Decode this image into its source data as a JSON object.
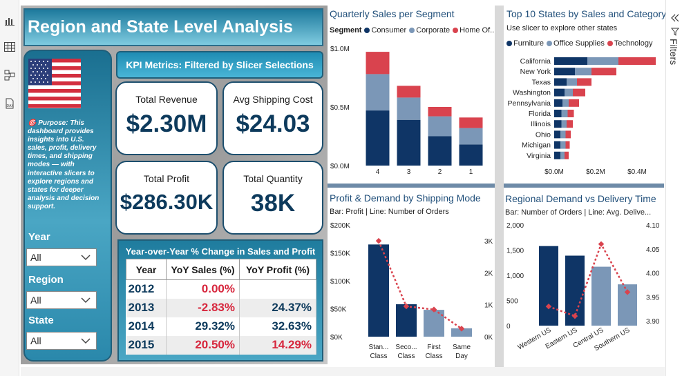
{
  "rail": {
    "icons": [
      "report-view-icon",
      "table-view-icon",
      "model-view-icon",
      "dax-query-icon"
    ]
  },
  "title": "Region and State Level Analysis",
  "purpose": "🎯 Purpose: This dashboard provides insights into U.S. sales, profit, delivery times, and shipping modes — with interactive slicers to explore regions and states for deeper analysis and decision support.",
  "slicers": [
    {
      "label": "Year",
      "value": "All"
    },
    {
      "label": "Region",
      "value": "All"
    },
    {
      "label": "State",
      "value": "All"
    }
  ],
  "kpi": {
    "header": "KPI Metrics: Filtered by Slicer Selections",
    "cards": [
      {
        "title": "Total Revenue",
        "value": "$2.30M"
      },
      {
        "title": "Avg Shipping Cost",
        "value": "$24.03"
      },
      {
        "title": "Total Profit",
        "value": "$286.30K"
      },
      {
        "title": "Total Quantity",
        "value": "38K"
      }
    ]
  },
  "yoy": {
    "title": "Year-over-Year % Change in Sales and Profit",
    "headers": [
      "Year",
      "YoY Sales (%)",
      "YoY Profit (%)"
    ],
    "rows": [
      {
        "year": "2012",
        "sales": "0.00%",
        "profit": "",
        "sales_color": "#d7263d",
        "profit_color": "#0d3a5c"
      },
      {
        "year": "2013",
        "sales": "-2.83%",
        "profit": "24.37%",
        "sales_color": "#d7263d",
        "profit_color": "#0d3a5c"
      },
      {
        "year": "2014",
        "sales": "29.32%",
        "profit": "32.63%",
        "sales_color": "#0d3a5c",
        "profit_color": "#0d3a5c"
      },
      {
        "year": "2015",
        "sales": "20.50%",
        "profit": "14.29%",
        "sales_color": "#d7263d",
        "profit_color": "#d7263d"
      }
    ]
  },
  "colors": {
    "navy": "#0f3566",
    "steel": "#7b97b7",
    "red": "#d9434e",
    "dotline": "#d9434e"
  },
  "chart_data": [
    {
      "type": "bar",
      "stacked": true,
      "title": "Quarterly Sales per Segment",
      "legend_title": "Segment",
      "categories": [
        "4",
        "3",
        "2",
        "1"
      ],
      "series": [
        {
          "name": "Consumer",
          "values": [
            0.47,
            0.39,
            0.25,
            0.18
          ]
        },
        {
          "name": "Corporate",
          "values": [
            0.31,
            0.19,
            0.17,
            0.14
          ]
        },
        {
          "name": "Home Of...",
          "values": [
            0.19,
            0.1,
            0.08,
            0.09
          ]
        }
      ],
      "yticks": [
        "$0.0M",
        "$0.5M",
        "$1.0M"
      ],
      "ylim": [
        0,
        1.0
      ]
    },
    {
      "type": "bar",
      "stacked": true,
      "orientation": "horizontal",
      "title": "Top 10 States by Sales and Category",
      "subtitle": "Use slicer to explore other states",
      "categories": [
        "California",
        "New York",
        "Texas",
        "Washington",
        "Pennsylvania",
        "Florida",
        "Illinois",
        "Ohio",
        "Michigan",
        "Virginia"
      ],
      "series": [
        {
          "name": "Furniture",
          "values": [
            0.16,
            0.1,
            0.06,
            0.05,
            0.04,
            0.035,
            0.035,
            0.03,
            0.03,
            0.03
          ]
        },
        {
          "name": "Office Supplies",
          "values": [
            0.15,
            0.08,
            0.05,
            0.04,
            0.03,
            0.03,
            0.025,
            0.025,
            0.025,
            0.02
          ]
        },
        {
          "name": "Technology",
          "values": [
            0.18,
            0.12,
            0.07,
            0.06,
            0.05,
            0.03,
            0.03,
            0.025,
            0.02,
            0.02
          ]
        }
      ],
      "xticks": [
        "$0.0M",
        "$0.2M",
        "$0.4M"
      ],
      "xlim": [
        0,
        0.5
      ]
    },
    {
      "type": "bar",
      "combo_line": true,
      "title": "Profit & Demand by Shipping Mode",
      "subtitle": "Bar: Profit | Line: Number of Orders",
      "categories": [
        "Stan... Class",
        "Seco... Class",
        "First Class",
        "Same Day"
      ],
      "bar_values_k": [
        165,
        58,
        48,
        15
      ],
      "line_values_k": [
        3.0,
        0.95,
        0.85,
        0.25
      ],
      "y_left_ticks": [
        "$0K",
        "$50K",
        "$100K",
        "$150K",
        "$200K"
      ],
      "y_right_ticks": [
        "0K",
        "1K",
        "2K",
        "3K"
      ],
      "ylim_left": [
        0,
        200
      ],
      "ylim_right": [
        0,
        3.5
      ]
    },
    {
      "type": "bar",
      "combo_line": true,
      "title": "Regional Demand vs Delivery Time",
      "subtitle": "Bar: Number of Orders | Line: Avg. Delive...",
      "categories": [
        "Western US",
        "Eastern US",
        "Central US",
        "Southern US"
      ],
      "bar_values": [
        1580,
        1390,
        1170,
        820
      ],
      "line_values": [
        3.93,
        3.91,
        4.06,
        3.96
      ],
      "y_left_ticks": [
        "0",
        "500",
        "1,000",
        "1,500",
        "2,000"
      ],
      "y_right_ticks": [
        "3.90",
        "3.95",
        "4.00",
        "4.05",
        "4.10"
      ],
      "ylim_left": [
        0,
        2000
      ],
      "ylim_right": [
        3.89,
        4.1
      ]
    }
  ],
  "filters_label": "Filters"
}
